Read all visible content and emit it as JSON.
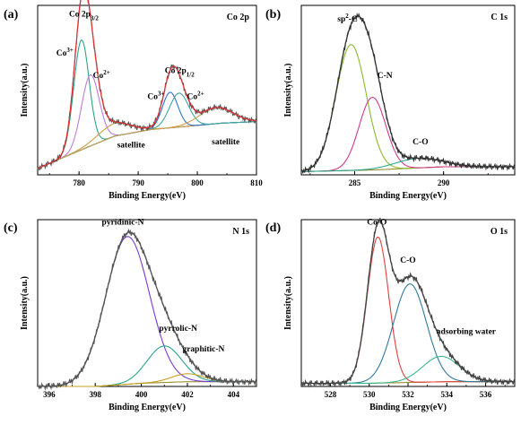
{
  "chart_data": [
    {
      "type": "line",
      "panel_label": "(a)",
      "tag": "Co 2p",
      "xlabel": "Binding Energy(eV)",
      "ylabel": "Intensity(a.u.)",
      "xlim": [
        773,
        810
      ],
      "ylim": [
        0,
        1.05
      ],
      "xticks": [
        780,
        790,
        800,
        810
      ],
      "baseline": [
        [
          773,
          0.04
        ],
        [
          782,
          0.18
        ],
        [
          786,
          0.24
        ],
        [
          792,
          0.28
        ],
        [
          798,
          0.3
        ],
        [
          804,
          0.32
        ],
        [
          810,
          0.33
        ]
      ],
      "fit_peaks": [
        {
          "center": 780.4,
          "height": 0.68,
          "width": 1.3,
          "color": "#2aa58c"
        },
        {
          "center": 781.9,
          "height": 0.44,
          "width": 1.5,
          "color": "#c07ad8"
        },
        {
          "center": 786.0,
          "height": 0.08,
          "width": 2.8,
          "color": "#c8a040"
        },
        {
          "center": 795.4,
          "height": 0.22,
          "width": 1.3,
          "color": "#2e6fd0"
        },
        {
          "center": 796.9,
          "height": 0.21,
          "width": 1.6,
          "color": "#3aa7a0"
        },
        {
          "center": 803.2,
          "height": 0.1,
          "width": 2.8,
          "color": "#d0a050"
        }
      ],
      "envelope_color": "#e03030",
      "raw_color": "#555555",
      "annotations": [
        {
          "text": "Co 2p",
          "sub": "3/2",
          "x": 780.8,
          "y": 0.98
        },
        {
          "text": "Co",
          "sup": "3+",
          "x": 777.6,
          "y": 0.74
        },
        {
          "text": "Co",
          "sup": "2+",
          "x": 783.8,
          "y": 0.6
        },
        {
          "text": "satellite",
          "x": 788.8,
          "y": 0.17
        },
        {
          "text": "Co 2p",
          "sub": "1/2",
          "x": 797.0,
          "y": 0.63
        },
        {
          "text": "Co",
          "sup": "3+",
          "x": 793.0,
          "y": 0.47
        },
        {
          "text": "Co",
          "sup": "2+",
          "x": 799.7,
          "y": 0.47
        },
        {
          "text": "satellite",
          "x": 804.8,
          "y": 0.19
        }
      ]
    },
    {
      "type": "line",
      "panel_label": "(b)",
      "tag": "C 1s",
      "xlabel": "Binding Energy(eV)",
      "ylabel": "Intensity(a.u.)",
      "xlim": [
        282,
        294
      ],
      "ylim": [
        0,
        1.05
      ],
      "xticks": [
        285,
        290
      ],
      "baseline": [
        [
          282,
          0.02
        ],
        [
          286,
          0.03
        ],
        [
          290,
          0.05
        ],
        [
          294,
          0.05
        ]
      ],
      "fit_peaks": [
        {
          "center": 284.8,
          "height": 0.78,
          "width": 0.85,
          "color": "#8ab830"
        },
        {
          "center": 286.0,
          "height": 0.45,
          "width": 0.75,
          "color": "#d03a8a"
        },
        {
          "center": 288.6,
          "height": 0.06,
          "width": 1.3,
          "color": "#2aa58c"
        }
      ],
      "envelope_color": "#333333",
      "raw_color": "#333333",
      "annotations": [
        {
          "text": "sp",
          "sup": "2",
          "tail": "-C",
          "x": 284.6,
          "y": 0.95
        },
        {
          "text": "C-N",
          "x": 286.7,
          "y": 0.6
        },
        {
          "text": "C-O",
          "x": 288.7,
          "y": 0.19
        }
      ]
    },
    {
      "type": "line",
      "panel_label": "(c)",
      "tag": "N 1s",
      "xlabel": "Binding Energy(eV)",
      "ylabel": "Intensity(a.u.)",
      "xlim": [
        395.5,
        405
      ],
      "ylim": [
        0,
        1.05
      ],
      "xticks": [
        396,
        398,
        400,
        402,
        404
      ],
      "baseline": [
        [
          395.5,
          0.0
        ],
        [
          398,
          0.0
        ],
        [
          400,
          0.02
        ],
        [
          402,
          0.03
        ],
        [
          405,
          0.03
        ]
      ],
      "fit_peaks": [
        {
          "center": 399.4,
          "height": 0.93,
          "width": 0.95,
          "color": "#7a3ad0"
        },
        {
          "center": 401.0,
          "height": 0.23,
          "width": 0.75,
          "color": "#2aa58c"
        },
        {
          "center": 402.0,
          "height": 0.05,
          "width": 0.7,
          "color": "#c8a020"
        }
      ],
      "envelope_color": "#555555",
      "raw_color": "#555555",
      "annotations": [
        {
          "text": "pyridinic-N",
          "x": 399.2,
          "y": 1.02
        },
        {
          "text": "pyrrolic-N",
          "x": 401.6,
          "y": 0.35
        },
        {
          "text": "graphitic-N",
          "x": 402.7,
          "y": 0.22
        }
      ]
    },
    {
      "type": "line",
      "panel_label": "(d)",
      "tag": "O 1s",
      "xlabel": "Binding Energy(eV)",
      "ylabel": "Intensity(a.u.)",
      "xlim": [
        526.5,
        537.5
      ],
      "ylim": [
        0,
        1.05
      ],
      "xticks": [
        528,
        530,
        532,
        534,
        536
      ],
      "baseline": [
        [
          526.5,
          0.02
        ],
        [
          530,
          0.02
        ],
        [
          534,
          0.03
        ],
        [
          537.5,
          0.03
        ]
      ],
      "fit_peaks": [
        {
          "center": 530.45,
          "height": 0.92,
          "width": 0.55,
          "color": "#e04040"
        },
        {
          "center": 532.1,
          "height": 0.62,
          "width": 0.85,
          "color": "#2e7a9a"
        },
        {
          "center": 533.7,
          "height": 0.16,
          "width": 0.95,
          "color": "#3ab890"
        }
      ],
      "envelope_color": "#444444",
      "raw_color": "#444444",
      "annotations": [
        {
          "text": "Co-O",
          "x": 530.4,
          "y": 1.02
        },
        {
          "text": "C-O",
          "x": 532.0,
          "y": 0.78
        },
        {
          "text": "adsorbing water",
          "x": 535.0,
          "y": 0.33
        }
      ]
    }
  ]
}
